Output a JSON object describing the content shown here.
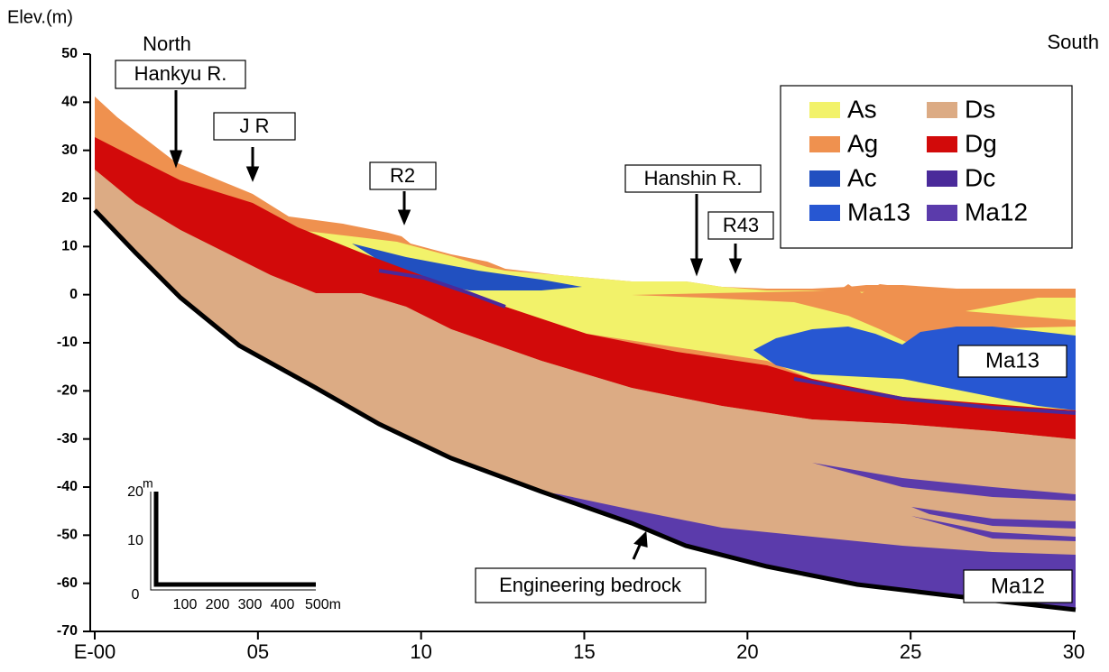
{
  "chart_data": {
    "type": "cross-section",
    "y_label": "Elev.(m)",
    "ylim": [
      -70,
      50
    ],
    "yticks": [
      -70,
      -60,
      -50,
      -40,
      -30,
      -20,
      -10,
      0,
      10,
      20,
      30,
      40,
      50
    ],
    "xlim": [
      0,
      30
    ],
    "xticks": [
      {
        "value": 0,
        "label": "E-00"
      },
      {
        "value": 5,
        "label": "05"
      },
      10,
      15,
      20,
      25,
      30
    ],
    "legend": {
      "position": "upper right",
      "entries": [
        {
          "name": "As",
          "color": "#f2f26a"
        },
        {
          "name": "Ds",
          "color": "#dcab84"
        },
        {
          "name": "Ag",
          "color": "#ef914f"
        },
        {
          "name": "Dg",
          "color": "#d20a0a"
        },
        {
          "name": "Ac",
          "color": "#2150c0"
        },
        {
          "name": "Dc",
          "color": "#4a2a9a"
        },
        {
          "name": "Ma13",
          "color": "#2757d2"
        },
        {
          "name": "Ma12",
          "color": "#5b3bab"
        }
      ]
    },
    "annotations": [
      "North",
      "South",
      "Hankyu R.",
      "J R",
      "R2",
      "Hanshin R.",
      "R43",
      "Engineering bedrock",
      "Ma13",
      "Ma12"
    ],
    "scale_bar": {
      "unit": "m",
      "vertical_labels": [
        "20",
        "10",
        "0"
      ],
      "horizontal_labels": [
        "100",
        "200",
        "300",
        "400",
        "500m"
      ]
    }
  }
}
